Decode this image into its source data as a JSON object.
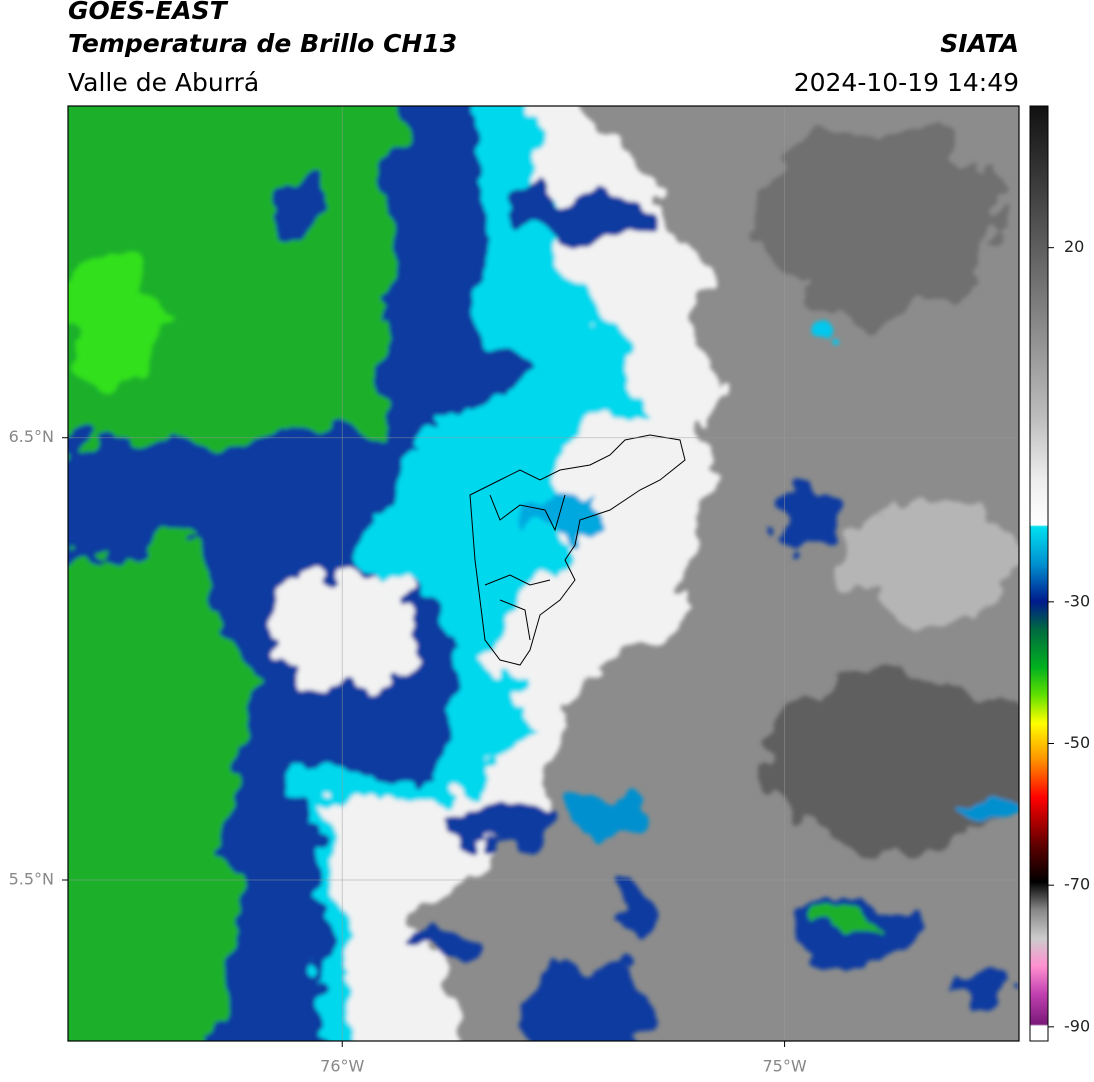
{
  "header": {
    "title": "GOES-EAST",
    "subtitle": "Temperatura de Brillo CH13",
    "region": "Valle de Aburrá",
    "agency": "SIATA",
    "datetime": "2024-10-19 14:49"
  },
  "map": {
    "xlim": [
      -76.62,
      -74.47
    ],
    "ylim": [
      5.136,
      7.25
    ],
    "xticks": [
      {
        "value": -76,
        "label": "76°W"
      },
      {
        "value": -75,
        "label": "75°W"
      }
    ],
    "yticks": [
      {
        "value": 6.5,
        "label": "6.5°N"
      },
      {
        "value": 5.5,
        "label": "5.5°N"
      }
    ],
    "grid": true
  },
  "colorbar": {
    "lim": [
      -92,
      40
    ],
    "ticks": [
      20,
      -30,
      -50,
      -70,
      -90
    ]
  }
}
